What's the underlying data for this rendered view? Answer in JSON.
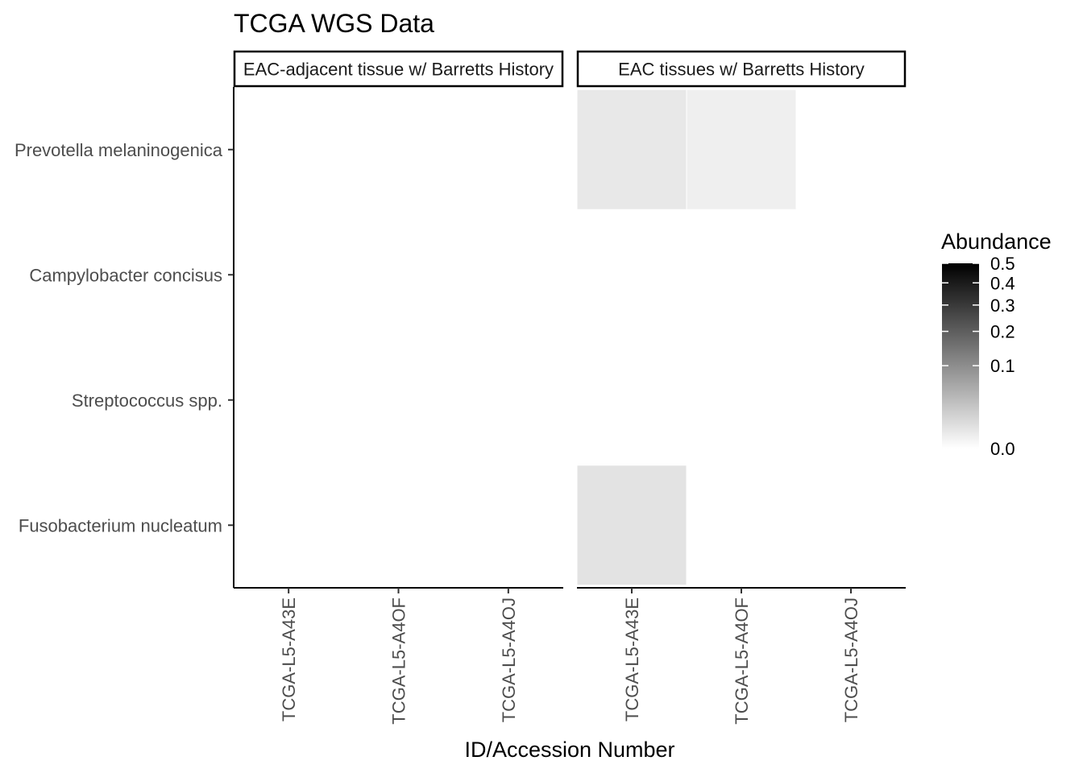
{
  "chart_data": {
    "type": "heatmap",
    "title": "TCGA WGS Data",
    "xlabel": "ID/Accession Number",
    "ylabel": "",
    "y_categories": [
      "Prevotella melaninogenica",
      "Campylobacter concisus",
      "Streptococcus spp.",
      "Fusobacterium nucleatum"
    ],
    "panels": [
      {
        "strip": "EAC-adjacent tissue w/ Barretts History",
        "x_categories": [
          "TCGA-L5-A43E",
          "TCGA-L5-A4OF",
          "TCGA-L5-A4OJ"
        ],
        "cells": [
          {
            "x": "TCGA-L5-A43E",
            "y": "Prevotella melaninogenica",
            "value": 0.0
          },
          {
            "x": "TCGA-L5-A4OF",
            "y": "Prevotella melaninogenica",
            "value": 0.0
          },
          {
            "x": "TCGA-L5-A4OJ",
            "y": "Prevotella melaninogenica",
            "value": 0.0
          },
          {
            "x": "TCGA-L5-A43E",
            "y": "Campylobacter concisus",
            "value": 0.0
          },
          {
            "x": "TCGA-L5-A4OF",
            "y": "Campylobacter concisus",
            "value": 0.0
          },
          {
            "x": "TCGA-L5-A4OJ",
            "y": "Campylobacter concisus",
            "value": 0.0
          },
          {
            "x": "TCGA-L5-A43E",
            "y": "Streptococcus spp.",
            "value": 0.0
          },
          {
            "x": "TCGA-L5-A4OF",
            "y": "Streptococcus spp.",
            "value": 0.0
          },
          {
            "x": "TCGA-L5-A4OJ",
            "y": "Streptococcus spp.",
            "value": 0.0
          },
          {
            "x": "TCGA-L5-A43E",
            "y": "Fusobacterium nucleatum",
            "value": 0.0
          },
          {
            "x": "TCGA-L5-A4OF",
            "y": "Fusobacterium nucleatum",
            "value": 0.0
          },
          {
            "x": "TCGA-L5-A4OJ",
            "y": "Fusobacterium nucleatum",
            "value": 0.0
          }
        ]
      },
      {
        "strip": "EAC tissues w/ Barretts History",
        "x_categories": [
          "TCGA-L5-A43E",
          "TCGA-L5-A4OF",
          "TCGA-L5-A4OJ"
        ],
        "cells": [
          {
            "x": "TCGA-L5-A43E",
            "y": "Prevotella melaninogenica",
            "value": 0.004
          },
          {
            "x": "TCGA-L5-A4OF",
            "y": "Prevotella melaninogenica",
            "value": 0.002
          },
          {
            "x": "TCGA-L5-A4OJ",
            "y": "Prevotella melaninogenica",
            "value": 0.0
          },
          {
            "x": "TCGA-L5-A43E",
            "y": "Campylobacter concisus",
            "value": 0.0
          },
          {
            "x": "TCGA-L5-A4OF",
            "y": "Campylobacter concisus",
            "value": 0.0
          },
          {
            "x": "TCGA-L5-A4OJ",
            "y": "Campylobacter concisus",
            "value": 0.0
          },
          {
            "x": "TCGA-L5-A43E",
            "y": "Streptococcus spp.",
            "value": 0.0
          },
          {
            "x": "TCGA-L5-A4OF",
            "y": "Streptococcus spp.",
            "value": 0.0
          },
          {
            "x": "TCGA-L5-A4OJ",
            "y": "Streptococcus spp.",
            "value": 0.0
          },
          {
            "x": "TCGA-L5-A43E",
            "y": "Fusobacterium nucleatum",
            "value": 0.006
          },
          {
            "x": "TCGA-L5-A4OF",
            "y": "Fusobacterium nucleatum",
            "value": 0.0
          },
          {
            "x": "TCGA-L5-A4OJ",
            "y": "Fusobacterium nucleatum",
            "value": 0.0
          }
        ]
      }
    ],
    "legend": {
      "title": "Abundance",
      "breaks": [
        0.0,
        0.1,
        0.2,
        0.3,
        0.4,
        0.5
      ],
      "labels": [
        "0.0",
        "0.1",
        "0.2",
        "0.3",
        "0.4",
        "0.5"
      ],
      "limits": [
        0,
        0.5
      ],
      "scale": "sqrt",
      "low_color": "#ffffff",
      "high_color": "#000000",
      "placement": "right"
    },
    "grid": false
  }
}
